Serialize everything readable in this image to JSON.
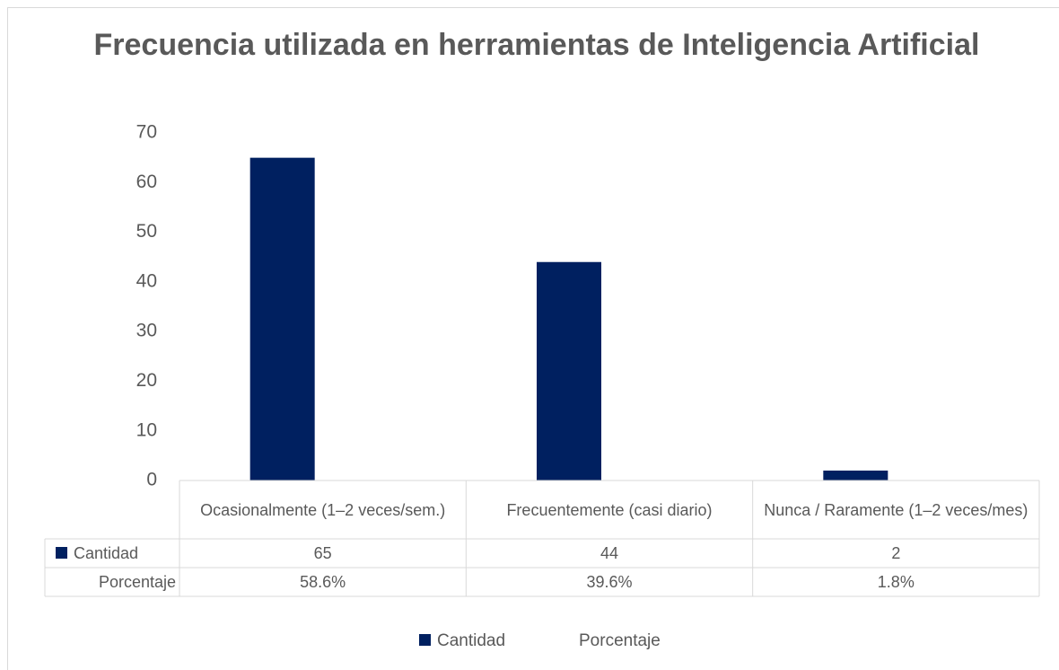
{
  "chart_data": {
    "type": "bar",
    "title": "Frecuencia utilizada en herramientas de Inteligencia Artificial",
    "categories": [
      "Ocasionalmente (1–2 veces/sem.)",
      "Frecuentemente (casi diario)",
      "Nunca / Raramente (1–2 veces/mes)"
    ],
    "series": [
      {
        "name": "Cantidad",
        "color": "#002060",
        "values": [
          65,
          44,
          2
        ]
      },
      {
        "name": "Porcentaje",
        "color": "none",
        "values": [
          58.6,
          39.6,
          1.8
        ],
        "value_labels": [
          "58.6%",
          "39.6%",
          "1.8%"
        ]
      }
    ],
    "ylim": [
      0,
      70
    ],
    "yticks": [
      0,
      10,
      20,
      30,
      40,
      50,
      60,
      70
    ],
    "grid": false,
    "data_table": true,
    "legend": "bottom"
  }
}
